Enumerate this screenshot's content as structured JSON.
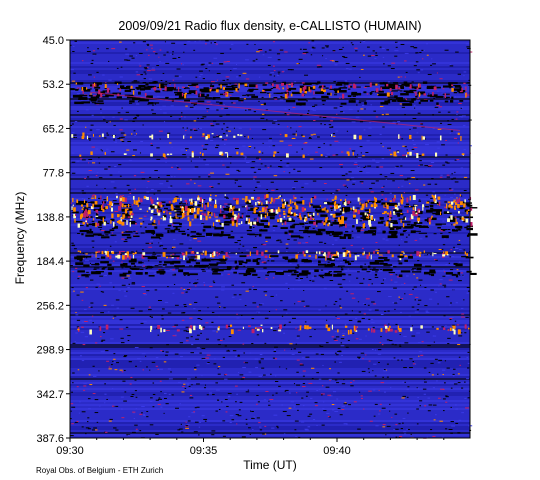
{
  "chart_data": {
    "type": "heatmap",
    "title": "2009/09/21  Radio flux density, e-CALLISTO (HUMAIN)",
    "xlabel": "Time (UT)",
    "ylabel": "Frequency (MHz)",
    "x_ticks": [
      "09:30",
      "09:35",
      "09:40"
    ],
    "x_range": [
      "09:30",
      "09:44.7"
    ],
    "y_ticks": [
      "45.0",
      "53.2",
      "65.2",
      "77.8",
      "138.8",
      "184.4",
      "256.2",
      "298.9",
      "342.7",
      "387.6"
    ],
    "y_range": [
      45.0,
      387.6
    ],
    "colormap": [
      "#000000",
      "#1a1aa0",
      "#3a3ae6",
      "#c0206a",
      "#ff8c00",
      "#ffffc0"
    ],
    "background_color": "#2c2cc8",
    "description_bands": [
      {
        "freq": 53.2,
        "level": "moderate"
      },
      {
        "freq": 138.8,
        "level": "strong"
      },
      {
        "freq": 184.4,
        "level": "moderate"
      },
      {
        "freq": 256.2,
        "level": "weak"
      }
    ],
    "credit": "Royal Obs. of Belgium - ETH Zurich"
  }
}
